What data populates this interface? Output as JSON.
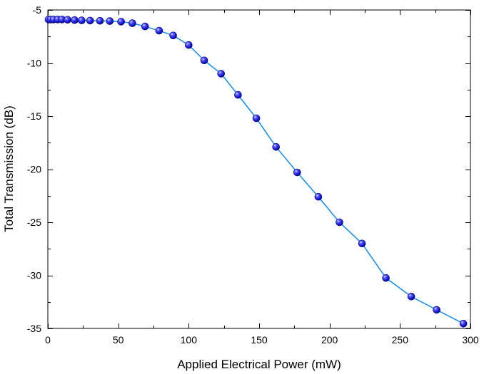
{
  "chart_data": {
    "type": "line",
    "title": "",
    "xlabel": "Applied Electrical Power (mW)",
    "ylabel": "Total Transmission (dB)",
    "xlim": [
      0,
      300
    ],
    "ylim": [
      -35,
      -5
    ],
    "xticks": [
      0,
      50,
      100,
      150,
      200,
      250,
      300
    ],
    "xtick_labels": [
      "0",
      "50",
      "100",
      "150",
      "200",
      "250",
      "300"
    ],
    "yticks": [
      -5,
      -10,
      -15,
      -20,
      -25,
      -30,
      -35
    ],
    "ytick_labels": [
      "-5",
      "-10",
      "-15",
      "-20",
      "-25",
      "-30",
      "-35"
    ],
    "grid": false,
    "series": [
      {
        "name": "Total Transmission",
        "line_color": "#1e8fe8",
        "marker_color": "#1a1ae6",
        "x": [
          0.5,
          2,
          4,
          7,
          10,
          14,
          19,
          24,
          30,
          37,
          44,
          52,
          60,
          69,
          79,
          89,
          100,
          111,
          123,
          135,
          148,
          162,
          177,
          192,
          207,
          223,
          240,
          258,
          276,
          295
        ],
        "y": [
          -5.9,
          -5.9,
          -5.9,
          -5.9,
          -5.9,
          -5.92,
          -5.95,
          -5.98,
          -6.0,
          -6.02,
          -6.05,
          -6.1,
          -6.25,
          -6.55,
          -6.95,
          -7.4,
          -8.3,
          -9.75,
          -11.0,
          -13.0,
          -15.2,
          -17.9,
          -20.3,
          -22.6,
          -25.0,
          -27.0,
          -30.25,
          -32.0,
          -33.25,
          -34.55
        ]
      }
    ]
  }
}
